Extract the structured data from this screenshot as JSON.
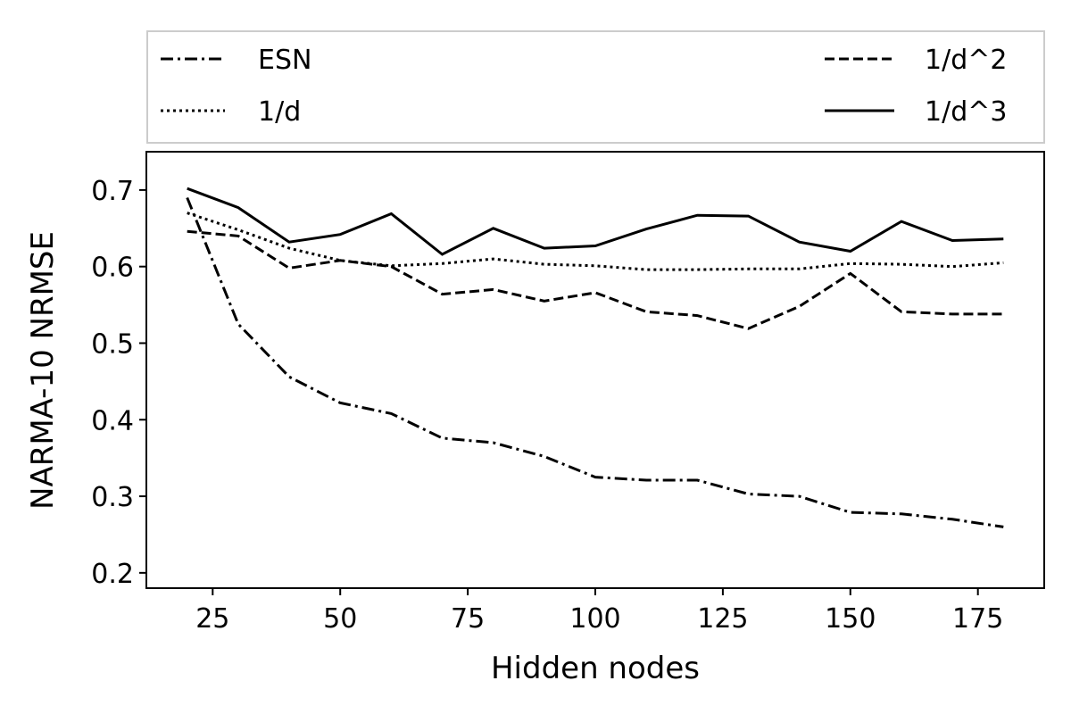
{
  "chart_data": {
    "type": "line",
    "title": "",
    "xlabel": "Hidden nodes",
    "ylabel": "NARMA-10 NRMSE",
    "xlim": [
      12,
      188
    ],
    "ylim": [
      0.18,
      0.75
    ],
    "xticks": [
      25,
      50,
      75,
      100,
      125,
      150,
      175
    ],
    "yticks": [
      0.2,
      0.3,
      0.4,
      0.5,
      0.6,
      0.7
    ],
    "xtick_labels": [
      "25",
      "50",
      "75",
      "100",
      "125",
      "150",
      "175"
    ],
    "ytick_labels": [
      "0.2",
      "0.3",
      "0.4",
      "0.5",
      "0.6",
      "0.7"
    ],
    "grid": false,
    "legend_position": "above",
    "x": [
      20,
      30,
      40,
      50,
      60,
      70,
      80,
      90,
      100,
      110,
      120,
      130,
      140,
      150,
      160,
      170,
      180
    ],
    "series": [
      {
        "name": "ESN",
        "line_style": "dash-dot",
        "color": "#000000",
        "values": [
          0.69,
          0.525,
          0.456,
          0.422,
          0.408,
          0.376,
          0.37,
          0.352,
          0.325,
          0.321,
          0.321,
          0.303,
          0.3,
          0.279,
          0.277,
          0.27,
          0.26
        ]
      },
      {
        "name": "1/d",
        "line_style": "dotted",
        "color": "#000000",
        "values": [
          0.67,
          0.648,
          0.624,
          0.608,
          0.601,
          0.604,
          0.61,
          0.603,
          0.601,
          0.596,
          0.596,
          0.597,
          0.597,
          0.604,
          0.603,
          0.6,
          0.605
        ]
      },
      {
        "name": "1/d^2",
        "line_style": "dashed",
        "color": "#000000",
        "values": [
          0.646,
          0.64,
          0.598,
          0.608,
          0.6,
          0.564,
          0.57,
          0.555,
          0.566,
          0.541,
          0.536,
          0.519,
          0.548,
          0.591,
          0.541,
          0.538,
          0.538
        ]
      },
      {
        "name": "1/d^3",
        "line_style": "solid",
        "color": "#000000",
        "values": [
          0.702,
          0.677,
          0.632,
          0.642,
          0.669,
          0.616,
          0.65,
          0.624,
          0.627,
          0.649,
          0.667,
          0.666,
          0.632,
          0.62,
          0.659,
          0.634,
          0.636
        ]
      }
    ]
  }
}
